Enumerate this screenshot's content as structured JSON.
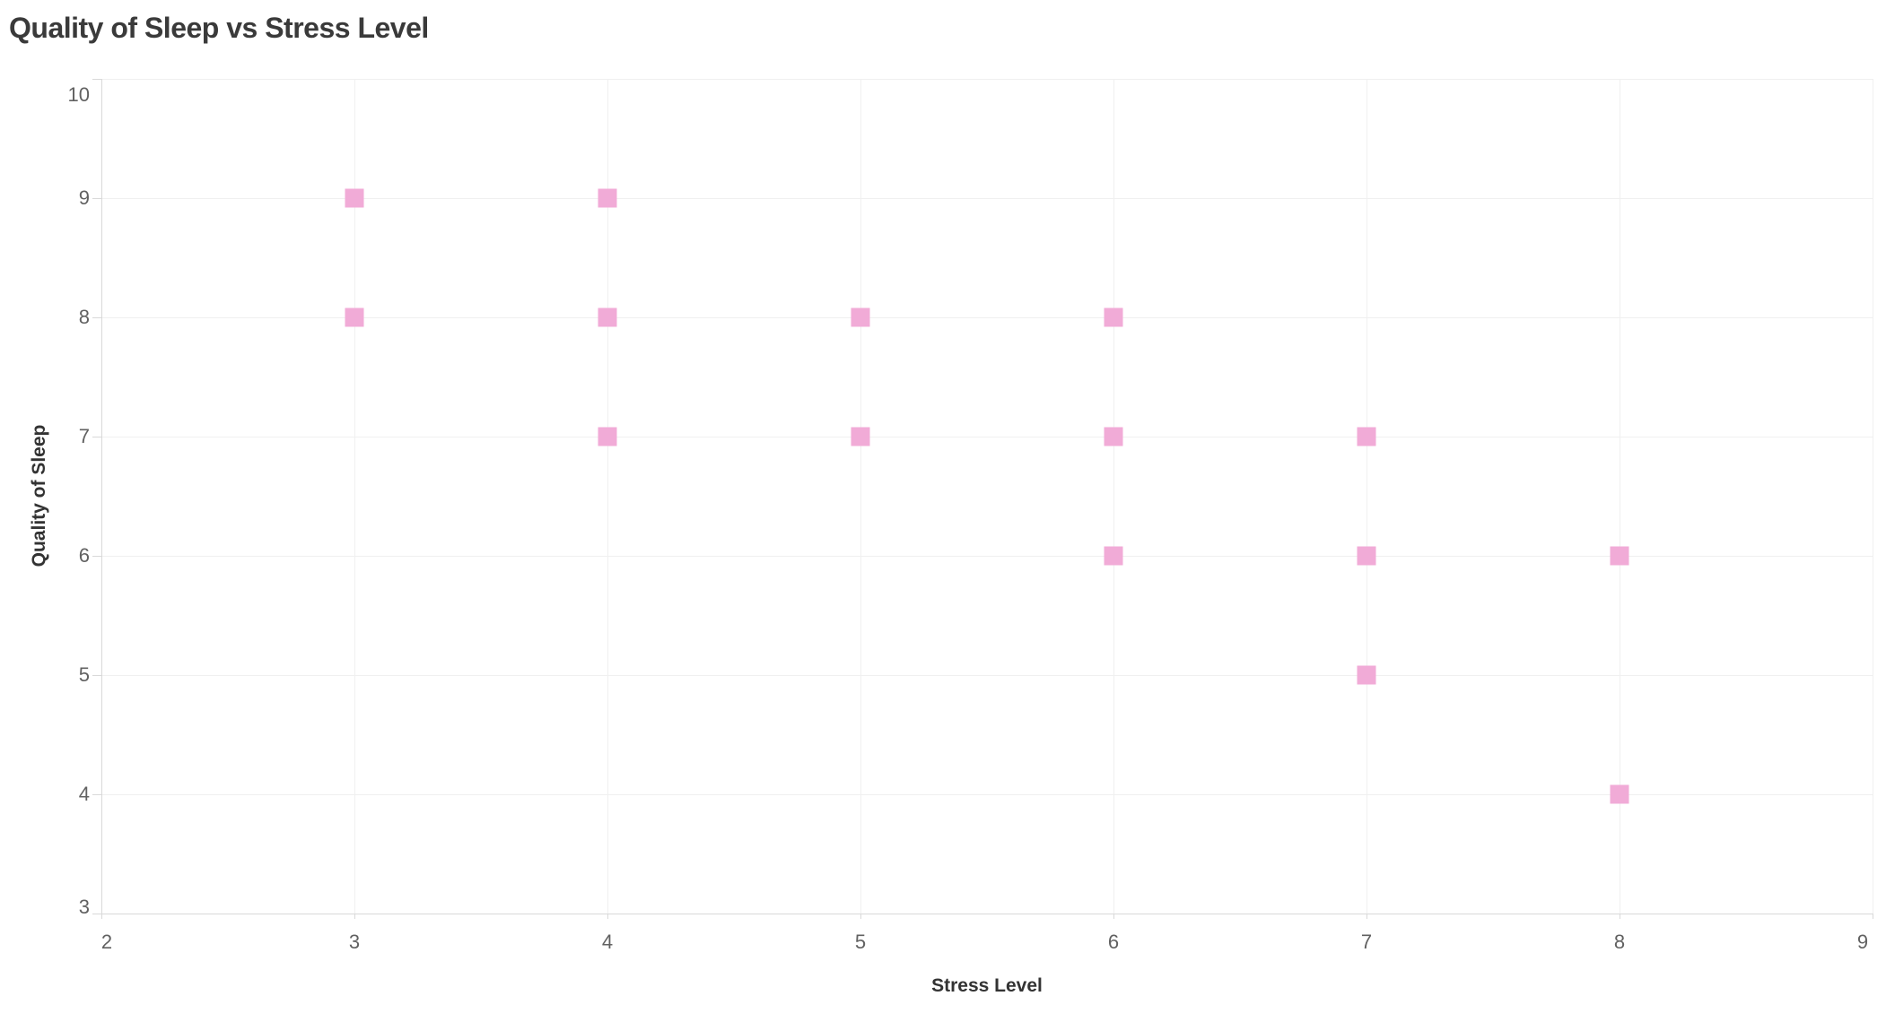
{
  "title": "Quality of Sleep vs Stress Level",
  "chart_data": {
    "type": "scatter",
    "title": "Quality of Sleep vs Stress Level",
    "xlabel": "Stress Level",
    "ylabel": "Quality of Sleep",
    "xlim": [
      2,
      9
    ],
    "ylim": [
      3,
      10
    ],
    "x_ticks": [
      2,
      3,
      4,
      5,
      6,
      7,
      8,
      9
    ],
    "y_ticks": [
      3,
      4,
      5,
      6,
      7,
      8,
      9,
      10
    ],
    "grid": true,
    "legend": "none",
    "marker": {
      "shape": "square",
      "size": 21,
      "color": "#F1ABD7"
    },
    "points": [
      {
        "x": 3,
        "y": 8
      },
      {
        "x": 3,
        "y": 9
      },
      {
        "x": 4,
        "y": 7
      },
      {
        "x": 4,
        "y": 8
      },
      {
        "x": 4,
        "y": 9
      },
      {
        "x": 5,
        "y": 7
      },
      {
        "x": 5,
        "y": 8
      },
      {
        "x": 6,
        "y": 6
      },
      {
        "x": 6,
        "y": 7
      },
      {
        "x": 6,
        "y": 8
      },
      {
        "x": 7,
        "y": 5
      },
      {
        "x": 7,
        "y": 6
      },
      {
        "x": 7,
        "y": 7
      },
      {
        "x": 8,
        "y": 4
      },
      {
        "x": 8,
        "y": 6
      }
    ]
  },
  "colors": {
    "marker": "#F1ABD7",
    "title_text": "#3a3a3a",
    "axis_title_text": "#333333",
    "tick_label_text": "#616161",
    "gridline": "#f0f0f0",
    "axis_rule": "#d9d9d9",
    "background": "#ffffff"
  }
}
